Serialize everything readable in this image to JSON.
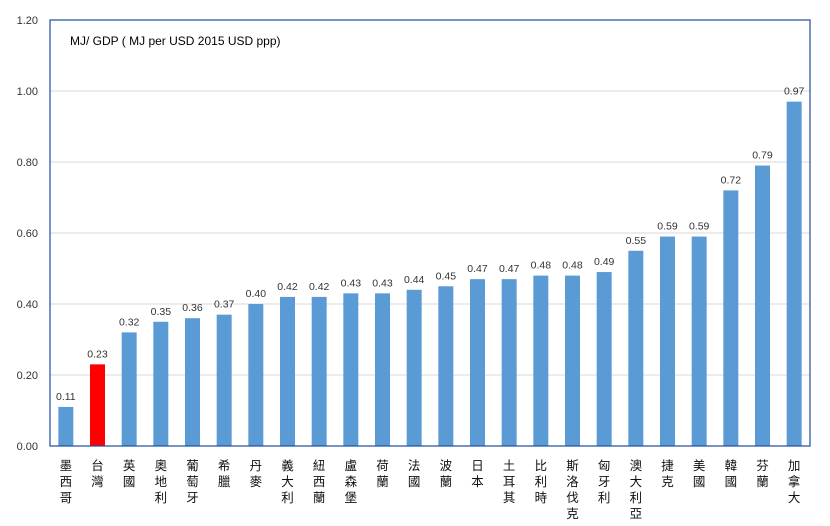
{
  "chart_data": {
    "type": "bar",
    "title": "MJ/ GDP ( MJ per  USD 2015 USD ppp)",
    "xlabel": "",
    "ylabel": "",
    "ylim": [
      0,
      1.2
    ],
    "yticks": [
      "0.00",
      "0.20",
      "0.40",
      "0.60",
      "0.80",
      "1.00",
      "1.20"
    ],
    "grid": true,
    "legend": "none",
    "categories": [
      "墨西哥",
      "台灣",
      "英國",
      "奧地利",
      "葡萄牙",
      "希臘",
      "丹麥",
      "義大利",
      "紐西蘭",
      "盧森堡",
      "荷蘭",
      "法國",
      "波蘭",
      "日本",
      "土耳其",
      "比利時",
      "斯洛伐克",
      "匈牙利",
      "澳大利亞",
      "捷克",
      "美國",
      "韓國",
      "芬蘭",
      "加拿大"
    ],
    "values": [
      0.11,
      0.23,
      0.32,
      0.35,
      0.36,
      0.37,
      0.4,
      0.42,
      0.42,
      0.43,
      0.43,
      0.44,
      0.45,
      0.47,
      0.47,
      0.48,
      0.48,
      0.49,
      0.55,
      0.59,
      0.59,
      0.72,
      0.79,
      0.97
    ],
    "value_labels": [
      "0.11",
      "0.23",
      "0.32",
      "0.35",
      "0.36",
      "0.37",
      "0.40",
      "0.42",
      "0.42",
      "0.43",
      "0.43",
      "0.44",
      "0.45",
      "0.47",
      "0.47",
      "0.48",
      "0.48",
      "0.49",
      "0.55",
      "0.59",
      "0.59",
      "0.72",
      "0.79",
      "0.97"
    ],
    "highlight_index": 1,
    "colors": {
      "bar": "#5b9bd5",
      "highlight": "#ff0000",
      "grid": "#d9d9d9",
      "frame": "#1f4ea1"
    }
  }
}
